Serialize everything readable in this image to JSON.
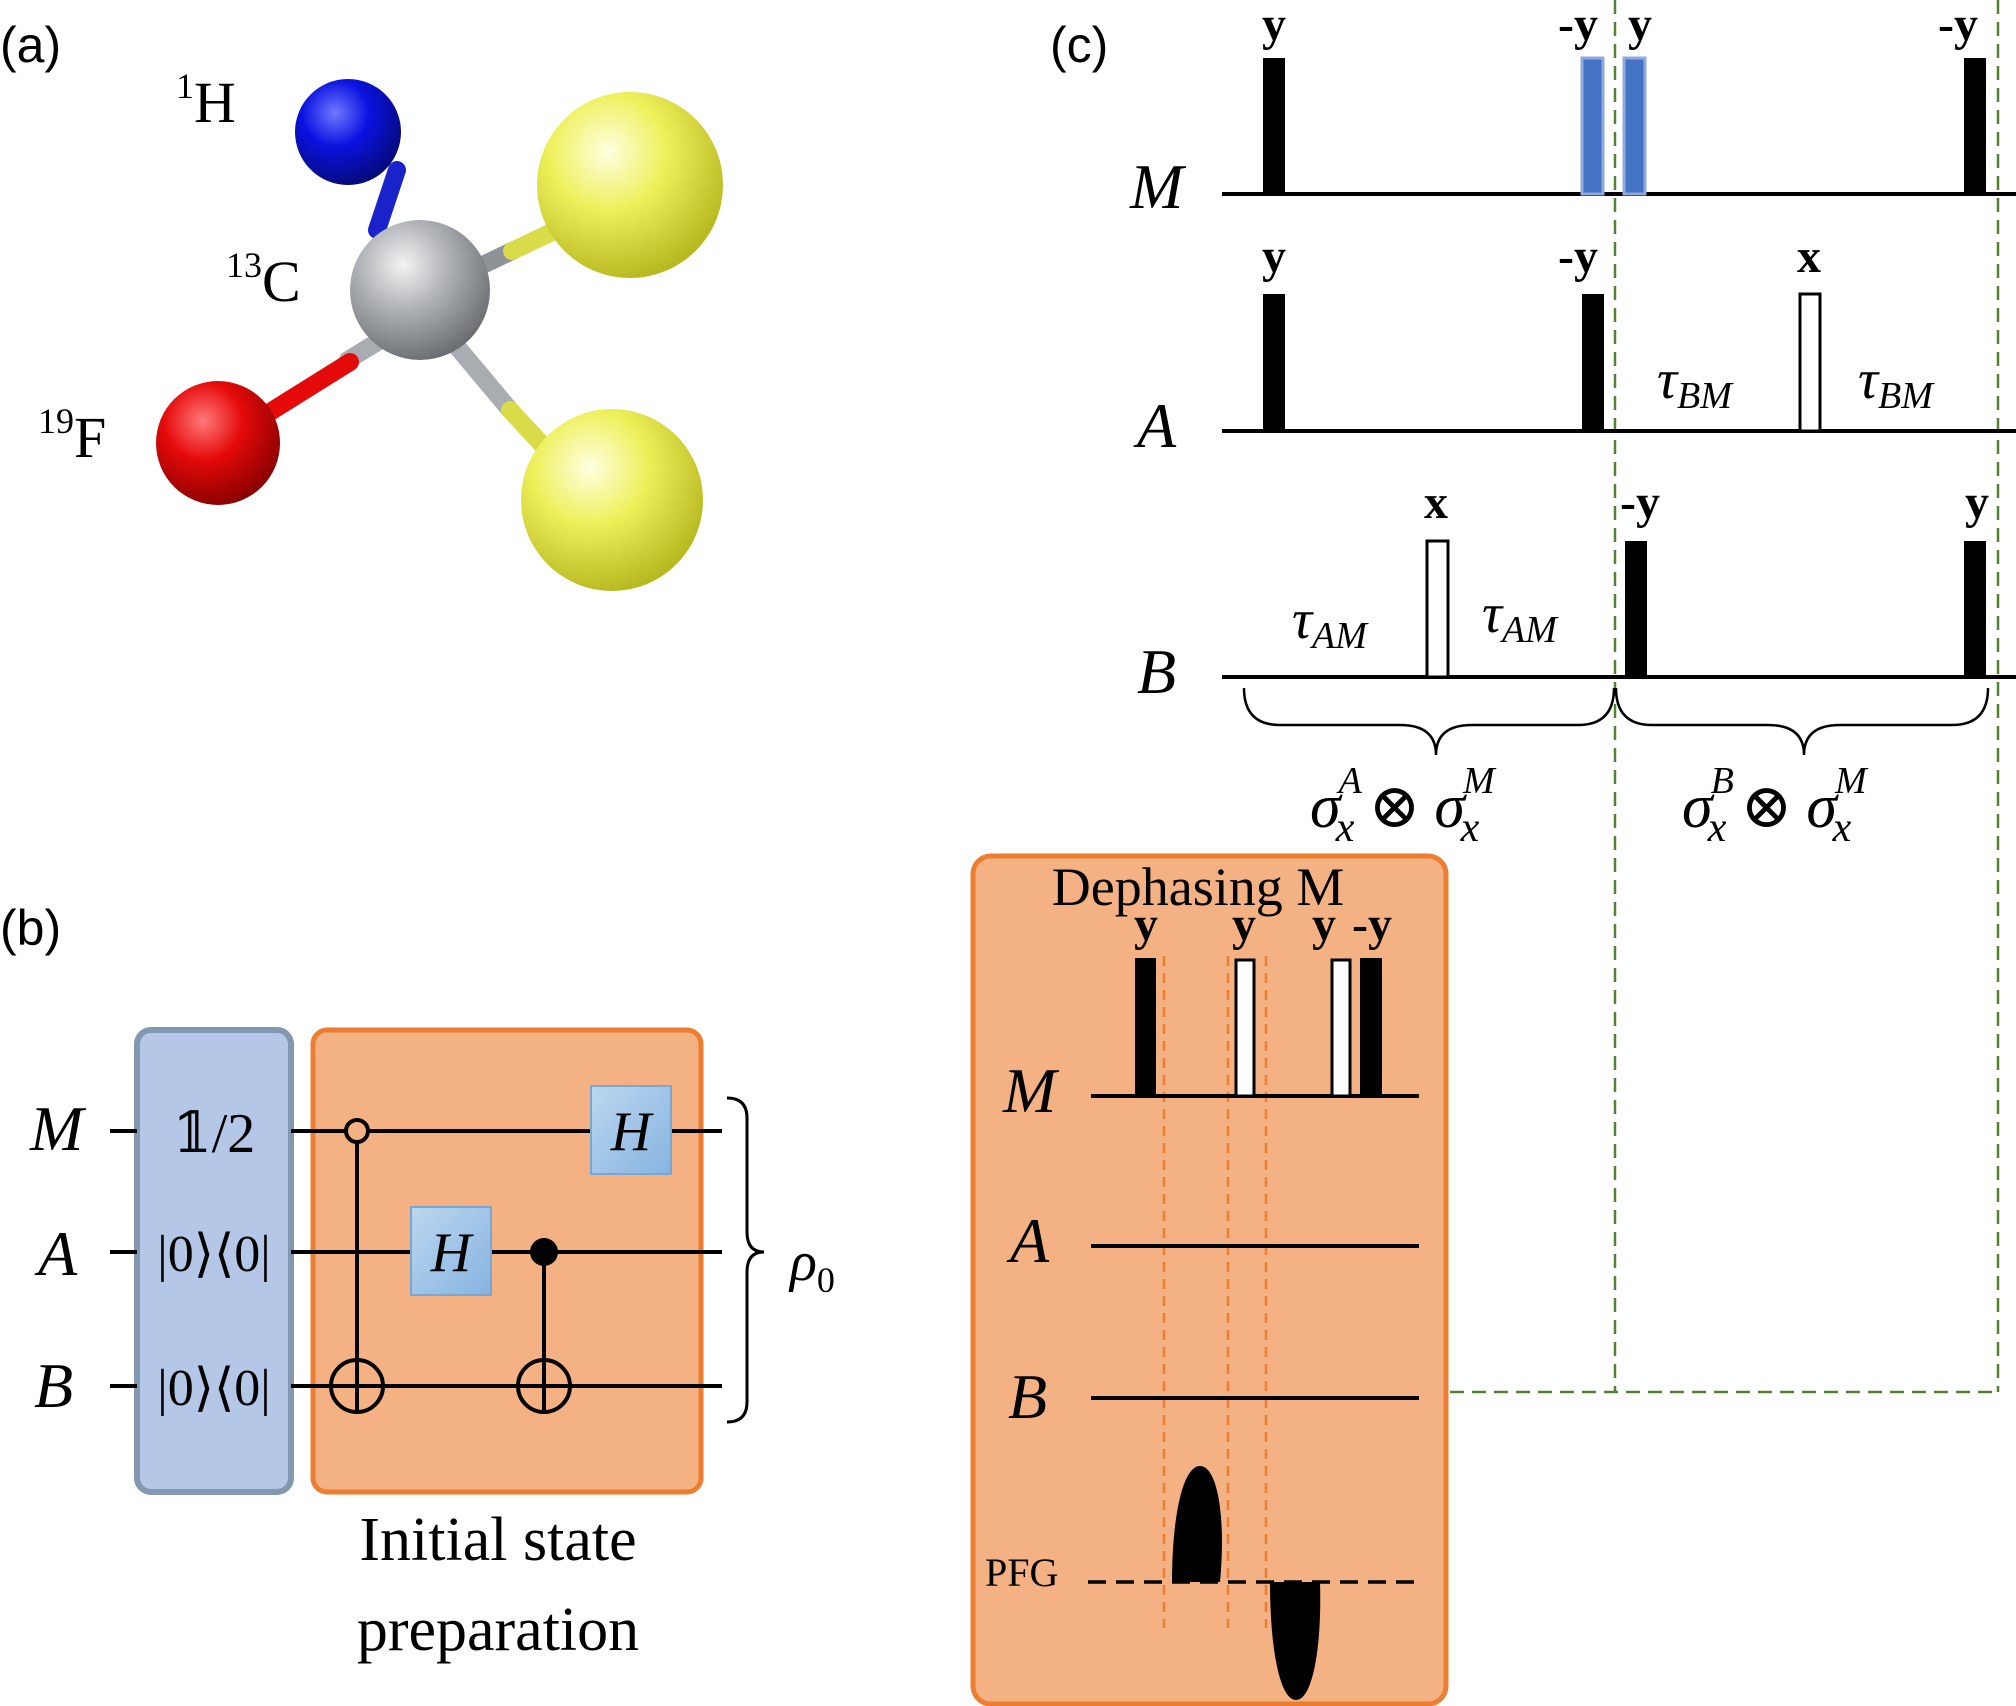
{
  "panel_labels": {
    "a": "(a)",
    "b": "(b)",
    "c": "(c)"
  },
  "molecule": {
    "h_mass": "1",
    "h_sym": "H",
    "c_mass": "13",
    "c_sym": "C",
    "f_mass": "19",
    "f_sym": "F",
    "colors": {
      "hydrogen": "#0b12e0",
      "carbon": "#a9acb0",
      "fluorine": "#e50a0a",
      "substituent": "#eef05a"
    }
  },
  "circuit": {
    "qubits": [
      "M",
      "A",
      "B"
    ],
    "init_states": [
      "𝟙/2",
      "|0⟩⟨0|",
      "|0⟩⟨0|"
    ],
    "hadamard": "H",
    "rho_symbol": "ρ",
    "rho_sub": "0",
    "caption_line1": "Initial state",
    "caption_line2": "preparation",
    "colors": {
      "init_box": "#b4c7e7",
      "prep_box": "#f4b183",
      "gate": "#9dc3e6"
    }
  },
  "sequence": {
    "channels": [
      "M",
      "A",
      "B"
    ],
    "phases": {
      "m1": "y",
      "m2": "-y",
      "m3": "y",
      "m4": "-y",
      "a1": "y",
      "a2": "-y",
      "a3": "x",
      "b1": "x",
      "b2": "-y",
      "b3": "y"
    },
    "tau": "τ",
    "tau_am": "AM",
    "tau_bm": "BM",
    "sigma": "σ",
    "sigma_sub": "x",
    "sup_a": "A",
    "sup_b": "B",
    "sup_m": "M",
    "tensor": "⊗",
    "colors": {
      "dephasing_pulse": "#4472c4",
      "guide_line": "#548235"
    }
  },
  "dephasing": {
    "title": "Dephasing M",
    "channels": [
      "M",
      "A",
      "B"
    ],
    "pfg_label": "PFG",
    "phases": {
      "p1": "y",
      "p2": "y",
      "p3": "y",
      "p4": "-y"
    }
  }
}
